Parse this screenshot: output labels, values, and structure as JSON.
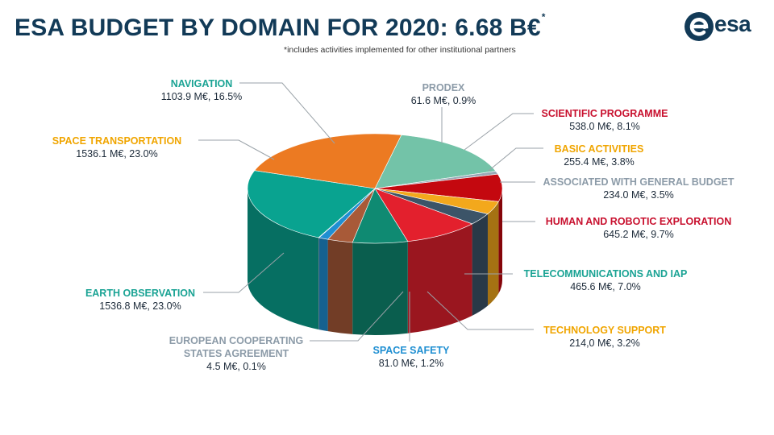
{
  "header": {
    "title": "ESA BUDGET BY DOMAIN FOR 2020: 6.68 B€",
    "title_mark": "*",
    "footnote": "*includes activities implemented for other institutional partners",
    "logo_text": "esa"
  },
  "chart_data": {
    "type": "pie",
    "title": "ESA BUDGET BY DOMAIN FOR 2020: 6.68 B€",
    "unit": "M€",
    "total": "6.68 B€",
    "slices": [
      {
        "name": "NAVIGATION",
        "value": 1103.9,
        "percent": 16.5,
        "value_label": "1103.9 M€, 16.5%",
        "color": "#73c3a8",
        "name_color": "#1aa394"
      },
      {
        "name": "PRODEX",
        "value": 61.6,
        "percent": 0.9,
        "value_label": "61.6 M€, 0.9%",
        "color": "#9aa9b6",
        "name_color": "#8c9ba8"
      },
      {
        "name": "SCIENTIFIC PROGRAMME",
        "value": 538.0,
        "percent": 8.1,
        "value_label": "538.0 M€, 8.1%",
        "color": "#c4080f",
        "name_color": "#c8102e"
      },
      {
        "name": "BASIC ACTIVITIES",
        "value": 255.4,
        "percent": 3.8,
        "value_label": "255.4 M€, 3.8%",
        "color": "#f3a81c",
        "name_color": "#f0a500"
      },
      {
        "name": "ASSOCIATED WITH GENERAL BUDGET",
        "value": 234.0,
        "percent": 3.5,
        "value_label": "234.0 M€, 3.5%",
        "color": "#3c5468",
        "name_color": "#8c9ba8"
      },
      {
        "name": "HUMAN AND ROBOTIC EXPLORATION",
        "value": 645.2,
        "percent": 9.7,
        "value_label": "645.2 M€, 9.7%",
        "color": "#e3202d",
        "name_color": "#c8102e"
      },
      {
        "name": "TELECOMMUNICATIONS AND IAP",
        "value": 465.6,
        "percent": 7.0,
        "value_label": "465.6 M€, 7.0%",
        "color": "#0f8a72",
        "name_color": "#1aa394"
      },
      {
        "name": "TECHNOLOGY SUPPORT",
        "value": 214.0,
        "percent": 3.2,
        "value_label": "214,0 M€, 3.2%",
        "color": "#a85a38",
        "name_color": "#f0a500"
      },
      {
        "name": "SPACE SAFETY",
        "value": 81.0,
        "percent": 1.2,
        "value_label": "81.0 M€, 1.2%",
        "color": "#1f8fd2",
        "name_color": "#1f8fd2"
      },
      {
        "name": "EUROPEAN COOPERATING STATES AGREEMENT",
        "value": 4.5,
        "percent": 0.1,
        "value_label": "4.5 M€, 0.1%",
        "color": "#9aa9b6",
        "name_color": "#8c9ba8"
      },
      {
        "name": "EARTH OBSERVATION",
        "value": 1536.8,
        "percent": 23.0,
        "value_label": "1536.8 M€, 23.0%",
        "color": "#09a390",
        "name_color": "#1aa394"
      },
      {
        "name": "SPACE TRANSPORTATION",
        "value": 1536.1,
        "percent": 23.0,
        "value_label": "1536.1 M€, 23.0%",
        "color": "#ec7a22",
        "name_color": "#f0a500"
      }
    ]
  },
  "labels": {
    "navigation_line1": "NAVIGATION",
    "prodex_line1": "PRODEX",
    "science_line1": "SCIENTIFIC PROGRAMME",
    "basic_line1": "BASIC ACTIVITIES",
    "assoc_line1": "ASSOCIATED WITH GENERAL BUDGET",
    "hre_line1": "HUMAN AND ROBOTIC EXPLORATION",
    "telecom_line1": "TELECOMMUNICATIONS AND IAP",
    "techsupport_line1": "TECHNOLOGY SUPPORT",
    "safety_line1": "SPACE SAFETY",
    "ecsa_line1": "EUROPEAN COOPERATING",
    "ecsa_line2": "STATES AGREEMENT",
    "eo_line1": "EARTH OBSERVATION",
    "transport_line1": "SPACE TRANSPORTATION"
  }
}
